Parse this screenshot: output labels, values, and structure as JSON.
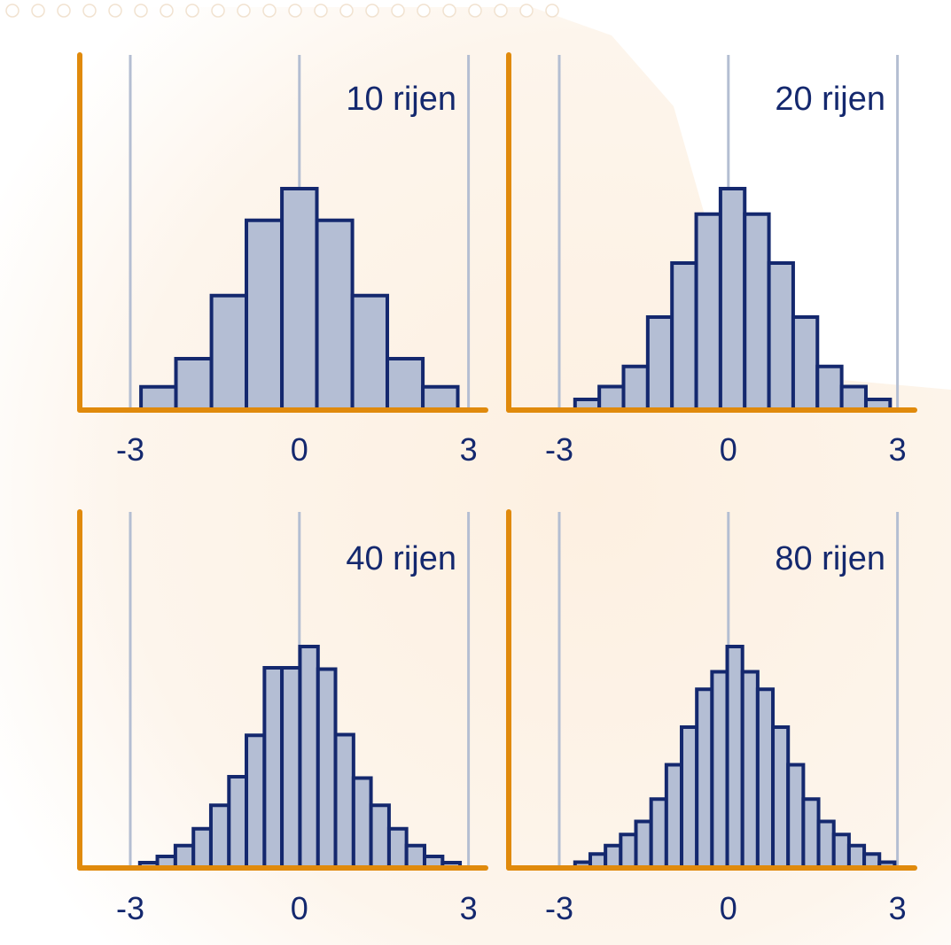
{
  "colors": {
    "background": "#fdf0e1",
    "bar_fill": "#b4bed4",
    "bar_stroke": "#14286e",
    "axis": "#e08a0c",
    "gridline": "#b4bed2",
    "text": "#14286e"
  },
  "chart_data": [
    {
      "type": "bar",
      "title": "10 rijen",
      "xlim": [
        -3.6,
        3.2
      ],
      "xticks": [
        {
          "value": -3,
          "label": "-3"
        },
        {
          "value": 0,
          "label": "0"
        },
        {
          "value": 3,
          "label": "3"
        }
      ],
      "ylim": [
        0,
        1
      ],
      "grid": true,
      "bins": [
        {
          "x0": -2.81,
          "x1": -2.19,
          "y": 0.105
        },
        {
          "x0": -2.19,
          "x1": -1.56,
          "y": 0.232
        },
        {
          "x0": -1.56,
          "x1": -0.94,
          "y": 0.517
        },
        {
          "x0": -0.94,
          "x1": -0.31,
          "y": 0.857
        },
        {
          "x0": -0.31,
          "x1": 0.31,
          "y": 1.0
        },
        {
          "x0": 0.31,
          "x1": 0.94,
          "y": 0.857
        },
        {
          "x0": 0.94,
          "x1": 1.56,
          "y": 0.517
        },
        {
          "x0": 1.56,
          "x1": 2.19,
          "y": 0.232
        },
        {
          "x0": 2.19,
          "x1": 2.81,
          "y": 0.105
        }
      ]
    },
    {
      "type": "bar",
      "title": "20 rijen",
      "xlim": [
        -3.6,
        3.2
      ],
      "xticks": [
        {
          "value": -3,
          "label": "-3"
        },
        {
          "value": 0,
          "label": "0"
        },
        {
          "value": 3,
          "label": "3"
        }
      ],
      "ylim": [
        0,
        1
      ],
      "grid": true,
      "bins": [
        {
          "x0": -2.72,
          "x1": -2.29,
          "y": 0.048
        },
        {
          "x0": -2.29,
          "x1": -1.86,
          "y": 0.106
        },
        {
          "x0": -1.86,
          "x1": -1.43,
          "y": 0.197
        },
        {
          "x0": -1.43,
          "x1": -1.0,
          "y": 0.42
        },
        {
          "x0": -1.0,
          "x1": -0.57,
          "y": 0.664
        },
        {
          "x0": -0.57,
          "x1": -0.14,
          "y": 0.885
        },
        {
          "x0": -0.14,
          "x1": 0.29,
          "y": 1.0
        },
        {
          "x0": 0.29,
          "x1": 0.72,
          "y": 0.885
        },
        {
          "x0": 0.72,
          "x1": 1.15,
          "y": 0.664
        },
        {
          "x0": 1.15,
          "x1": 1.58,
          "y": 0.42
        },
        {
          "x0": 1.58,
          "x1": 2.01,
          "y": 0.197
        },
        {
          "x0": 2.01,
          "x1": 2.44,
          "y": 0.106
        },
        {
          "x0": 2.44,
          "x1": 2.87,
          "y": 0.048
        }
      ]
    },
    {
      "type": "bar",
      "title": "40 rijen",
      "xlim": [
        -3.6,
        3.2
      ],
      "xticks": [
        {
          "value": -3,
          "label": "-3"
        },
        {
          "value": 0,
          "label": "0"
        },
        {
          "value": 3,
          "label": "3"
        }
      ],
      "ylim": [
        0,
        1
      ],
      "grid": true,
      "bins": [
        {
          "x0": -2.83,
          "x1": -2.52,
          "y": 0.024
        },
        {
          "x0": -2.52,
          "x1": -2.2,
          "y": 0.052
        },
        {
          "x0": -2.2,
          "x1": -1.88,
          "y": 0.101
        },
        {
          "x0": -1.88,
          "x1": -1.57,
          "y": 0.177
        },
        {
          "x0": -1.57,
          "x1": -1.25,
          "y": 0.283
        },
        {
          "x0": -1.25,
          "x1": -0.94,
          "y": 0.412
        },
        {
          "x0": -0.94,
          "x1": -0.62,
          "y": 0.599
        },
        {
          "x0": -0.62,
          "x1": -0.31,
          "y": 0.904
        },
        {
          "x0": -0.31,
          "x1": 0.01,
          "y": 0.904
        },
        {
          "x0": 0.01,
          "x1": 0.33,
          "y": 1.0
        },
        {
          "x0": 0.33,
          "x1": 0.64,
          "y": 0.898
        },
        {
          "x0": 0.64,
          "x1": 0.96,
          "y": 0.602
        },
        {
          "x0": 0.96,
          "x1": 1.27,
          "y": 0.406
        },
        {
          "x0": 1.27,
          "x1": 1.59,
          "y": 0.283
        },
        {
          "x0": 1.59,
          "x1": 1.9,
          "y": 0.177
        },
        {
          "x0": 1.9,
          "x1": 2.22,
          "y": 0.101
        },
        {
          "x0": 2.22,
          "x1": 2.54,
          "y": 0.052
        },
        {
          "x0": 2.54,
          "x1": 2.85,
          "y": 0.024
        }
      ]
    },
    {
      "type": "bar",
      "title": "80 rijen",
      "xlim": [
        -3.6,
        3.2
      ],
      "xticks": [
        {
          "value": -3,
          "label": "-3"
        },
        {
          "value": 0,
          "label": "0"
        },
        {
          "value": 3,
          "label": "3"
        }
      ],
      "ylim": [
        0,
        1
      ],
      "grid": true,
      "bins": [
        {
          "x0": -2.72,
          "x1": -2.45,
          "y": 0.026
        },
        {
          "x0": -2.45,
          "x1": -2.18,
          "y": 0.063
        },
        {
          "x0": -2.18,
          "x1": -1.91,
          "y": 0.101
        },
        {
          "x0": -1.91,
          "x1": -1.64,
          "y": 0.151
        },
        {
          "x0": -1.64,
          "x1": -1.37,
          "y": 0.21
        },
        {
          "x0": -1.37,
          "x1": -1.1,
          "y": 0.311
        },
        {
          "x0": -1.1,
          "x1": -0.83,
          "y": 0.466
        },
        {
          "x0": -0.83,
          "x1": -0.56,
          "y": 0.636
        },
        {
          "x0": -0.56,
          "x1": -0.29,
          "y": 0.807
        },
        {
          "x0": -0.29,
          "x1": -0.02,
          "y": 0.886
        },
        {
          "x0": -0.02,
          "x1": 0.25,
          "y": 1.0
        },
        {
          "x0": 0.25,
          "x1": 0.52,
          "y": 0.886
        },
        {
          "x0": 0.52,
          "x1": 0.79,
          "y": 0.807
        },
        {
          "x0": 0.79,
          "x1": 1.06,
          "y": 0.636
        },
        {
          "x0": 1.06,
          "x1": 1.33,
          "y": 0.466
        },
        {
          "x0": 1.33,
          "x1": 1.6,
          "y": 0.311
        },
        {
          "x0": 1.6,
          "x1": 1.87,
          "y": 0.21
        },
        {
          "x0": 1.87,
          "x1": 2.14,
          "y": 0.151
        },
        {
          "x0": 2.14,
          "x1": 2.41,
          "y": 0.101
        },
        {
          "x0": 2.41,
          "x1": 2.68,
          "y": 0.063
        },
        {
          "x0": 2.68,
          "x1": 2.95,
          "y": 0.026
        }
      ]
    }
  ]
}
